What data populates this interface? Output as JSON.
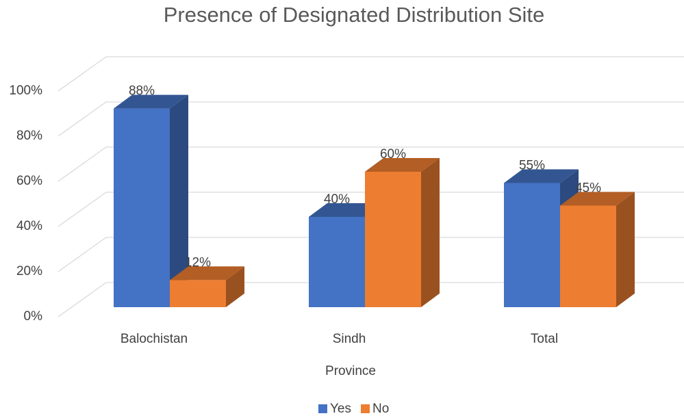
{
  "chart_data": {
    "type": "bar3d",
    "title": "Presence of Designated Distribution Site",
    "x_label": "Province",
    "categories": [
      "Balochistan",
      "Sindh",
      "Total"
    ],
    "series": [
      {
        "name": "Yes",
        "color": "#4472c4",
        "values": [
          88,
          40,
          55
        ],
        "value_labels": [
          "88%",
          "40%",
          "55%"
        ]
      },
      {
        "name": "No",
        "color": "#ed7d31",
        "values": [
          12,
          60,
          45
        ],
        "value_labels": [
          "12%",
          "60%",
          "45%"
        ]
      }
    ],
    "ylim": [
      0,
      100
    ],
    "yticks": [
      {
        "value": 0,
        "label": "0%"
      },
      {
        "value": 20,
        "label": "20%"
      },
      {
        "value": 40,
        "label": "40%"
      },
      {
        "value": 60,
        "label": "60%"
      },
      {
        "value": 80,
        "label": "80%"
      },
      {
        "value": 100,
        "label": "100%"
      }
    ],
    "grid": true,
    "legend": "bottom"
  }
}
